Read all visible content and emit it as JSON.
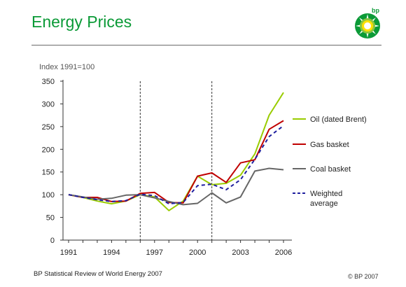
{
  "slide": {
    "title": "Energy Prices",
    "footer_source": "BP Statistical Review of World Energy 2007",
    "footer_copyright": "© BP 2007",
    "logo_text": "bp"
  },
  "colors": {
    "title": "#0b9a37",
    "oil": "#99cc00",
    "gas": "#c00000",
    "coal": "#666666",
    "weighted": "#1f1f9e",
    "marker_lines": "#333333"
  },
  "chart_data": {
    "type": "line",
    "title": "",
    "ylabel": "Index 1991=100",
    "xlabel": "",
    "ylim": [
      0,
      350
    ],
    "yticks": [
      0,
      50,
      100,
      150,
      200,
      250,
      300,
      350
    ],
    "xlim": [
      1991,
      2006
    ],
    "xticks": [
      1991,
      1994,
      1997,
      2000,
      2003,
      2006
    ],
    "x": [
      1991,
      1992,
      1993,
      1994,
      1995,
      1996,
      1997,
      1998,
      1999,
      2000,
      2001,
      2002,
      2003,
      2004,
      2005,
      2006
    ],
    "vertical_markers": [
      1996,
      2001
    ],
    "grid": false,
    "legend_position": "right",
    "series": [
      {
        "name": "Oil (dated Brent)",
        "color_key": "oil",
        "style": "solid",
        "values": [
          100,
          94,
          86,
          80,
          86,
          100,
          95,
          65,
          86,
          141,
          122,
          125,
          143,
          190,
          275,
          325
        ]
      },
      {
        "name": "Gas basket",
        "color_key": "gas",
        "style": "solid",
        "values": [
          100,
          94,
          94,
          85,
          86,
          103,
          105,
          83,
          82,
          141,
          148,
          127,
          170,
          177,
          244,
          263
        ]
      },
      {
        "name": "Coal basket",
        "color_key": "coal",
        "style": "solid",
        "values": [
          100,
          95,
          90,
          92,
          99,
          100,
          93,
          85,
          78,
          81,
          104,
          82,
          95,
          152,
          158,
          155
        ]
      },
      {
        "name": "Weighted\naverage",
        "color_key": "weighted",
        "style": "dashed",
        "values": [
          100,
          94,
          89,
          85,
          87,
          101,
          98,
          80,
          83,
          120,
          123,
          111,
          133,
          178,
          228,
          252
        ]
      }
    ]
  }
}
